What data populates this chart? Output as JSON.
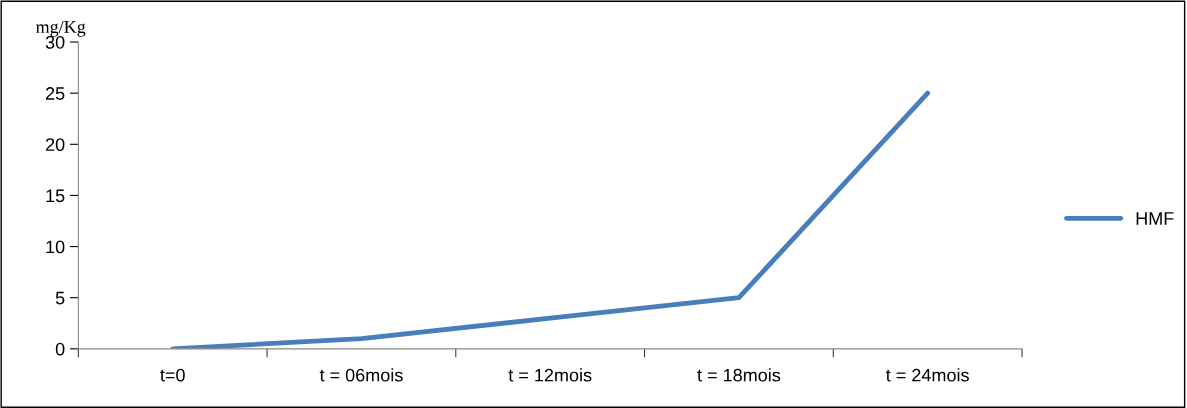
{
  "chart_data": {
    "type": "line",
    "ylabel": "mg/Kg",
    "categories": [
      "t=0",
      "t = 06mois",
      "t = 12mois",
      "t = 18mois",
      "t = 24mois"
    ],
    "series": [
      {
        "name": "HMF",
        "color": "#4a7ebb",
        "values": [
          0,
          1,
          3,
          5,
          25
        ]
      }
    ],
    "ylim": [
      0,
      30
    ],
    "yticks": [
      0,
      5,
      10,
      15,
      20,
      25,
      30
    ],
    "grid": false,
    "legend": "right",
    "marker": "none",
    "line_style": "solid"
  }
}
